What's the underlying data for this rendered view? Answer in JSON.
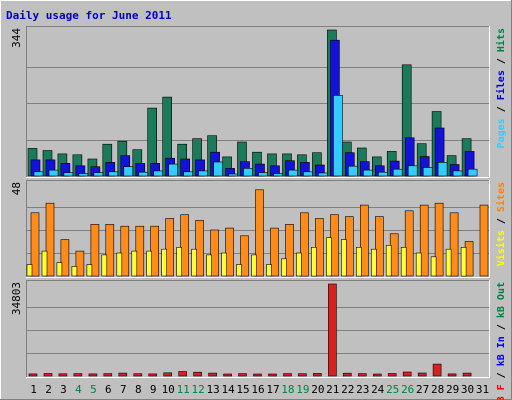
{
  "chart_data": {
    "type": "bar",
    "title": "Daily usage for June 2011",
    "categories": [
      "1",
      "2",
      "3",
      "4",
      "5",
      "6",
      "7",
      "8",
      "9",
      "10",
      "11",
      "12",
      "13",
      "14",
      "15",
      "16",
      "17",
      "18",
      "19",
      "20",
      "21",
      "22",
      "23",
      "24",
      "25",
      "26",
      "27",
      "28",
      "29",
      "30",
      "31"
    ],
    "weekend_days": [
      4,
      5,
      11,
      12,
      18,
      19,
      25,
      26
    ],
    "panels": [
      {
        "name": "hits",
        "ymax_label": "344",
        "ylim": [
          0,
          344
        ],
        "axis_legend": [
          {
            "text": "Pages",
            "color": "#33CCFF"
          },
          {
            "text": " / ",
            "color": "#000000"
          },
          {
            "text": "Files",
            "color": "#0000CC"
          },
          {
            "text": " / ",
            "color": "#000000"
          },
          {
            "text": "Hits",
            "color": "#008040"
          }
        ],
        "series": [
          {
            "key": "Hits",
            "color": "#1a7a5a",
            "values": [
              65,
              60,
              52,
              50,
              40,
              75,
              82,
              62,
              160,
              186,
              75,
              88,
              95,
              45,
              80,
              56,
              52,
              52,
              50,
              55,
              344,
              80,
              66,
              45,
              58,
              262,
              76,
              152,
              48,
              88,
              0
            ]
          },
          {
            "key": "Files",
            "color": "#1212d8",
            "values": [
              38,
              38,
              30,
              24,
              22,
              32,
              48,
              30,
              30,
              42,
              40,
              38,
              56,
              18,
              34,
              28,
              24,
              36,
              32,
              26,
              320,
              55,
              34,
              24,
              35,
              90,
              46,
              113,
              27,
              58,
              0
            ]
          },
          {
            "key": "Pages",
            "color": "#33ccff",
            "values": [
              10,
              14,
              8,
              6,
              8,
              10,
              22,
              9,
              12,
              28,
              10,
              12,
              33,
              4,
              18,
              8,
              6,
              14,
              10,
              7,
              190,
              23,
              14,
              9,
              16,
              24,
              20,
              32,
              12,
              16,
              0
            ]
          }
        ]
      },
      {
        "name": "visits",
        "ymax_label": "48",
        "ylim": [
          0,
          48
        ],
        "axis_legend": [
          {
            "text": "Visits",
            "color": "#FFFF00"
          },
          {
            "text": " / ",
            "color": "#000000"
          },
          {
            "text": "Sites",
            "color": "#FF8000"
          }
        ],
        "series": [
          {
            "key": "Sites",
            "color": "#ff8c1a",
            "values": [
              33,
              38,
              19,
              13,
              27,
              27,
              26,
              26,
              26,
              30,
              32,
              29,
              24,
              25,
              21,
              45,
              25,
              27,
              33,
              30,
              32,
              31,
              37,
              31,
              22,
              34,
              37,
              38,
              33,
              18,
              37
            ]
          },
          {
            "key": "Visits",
            "color": "#ffff33",
            "values": [
              6,
              13,
              7,
              5,
              6,
              11,
              12,
              13,
              13,
              14,
              15,
              14,
              11,
              12,
              6,
              11,
              6,
              9,
              12,
              15,
              20,
              19,
              15,
              14,
              16,
              15,
              12,
              10,
              14,
              15,
              0
            ]
          }
        ]
      },
      {
        "name": "kbytes",
        "ymax_label": "34803",
        "ylim": [
          0,
          34803
        ],
        "axis_legend": [
          {
            "text": "kB F",
            "color": "#FF0000"
          },
          {
            "text": " / ",
            "color": "#000000"
          },
          {
            "text": "kB In",
            "color": "#0000FF"
          },
          {
            "text": " / ",
            "color": "#000000"
          },
          {
            "text": "kB Out",
            "color": "#008040"
          }
        ],
        "series": [
          {
            "key": "kB F",
            "color": "#d82222",
            "values": [
              800,
              950,
              820,
              900,
              780,
              900,
              1100,
              860,
              800,
              1200,
              1700,
              1450,
              1100,
              720,
              900,
              760,
              620,
              900,
              880,
              1000,
              34803,
              1050,
              900,
              720,
              960,
              1500,
              1150,
              4500,
              800,
              1100,
              0
            ]
          }
        ]
      }
    ]
  }
}
